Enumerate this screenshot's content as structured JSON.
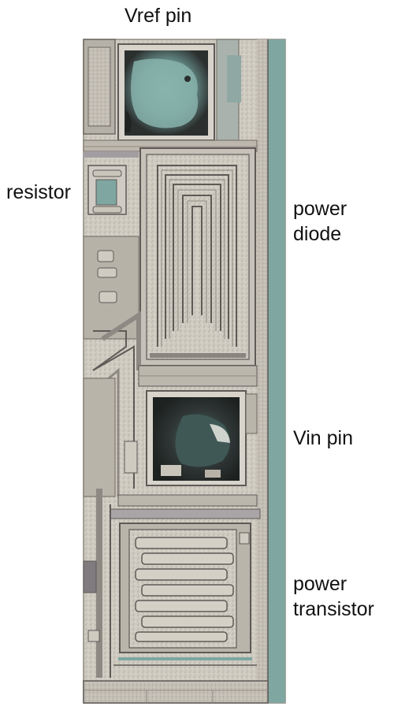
{
  "labels": {
    "vref_pin": "Vref pin",
    "resistor": "resistor",
    "power_diode": "power\ndiode",
    "vin_pin": "Vin pin",
    "power_transistor": "power\ntransistor"
  },
  "colors": {
    "die_base": "#b9b4a9",
    "metal": "#d4d0c6",
    "trace_dark": "#5e5a56",
    "oxide_gray": "#9f9ba0",
    "teal_strip": "#7fa6a1",
    "pad_dark": "#2c302e",
    "pad_teal": "#78a39f"
  }
}
